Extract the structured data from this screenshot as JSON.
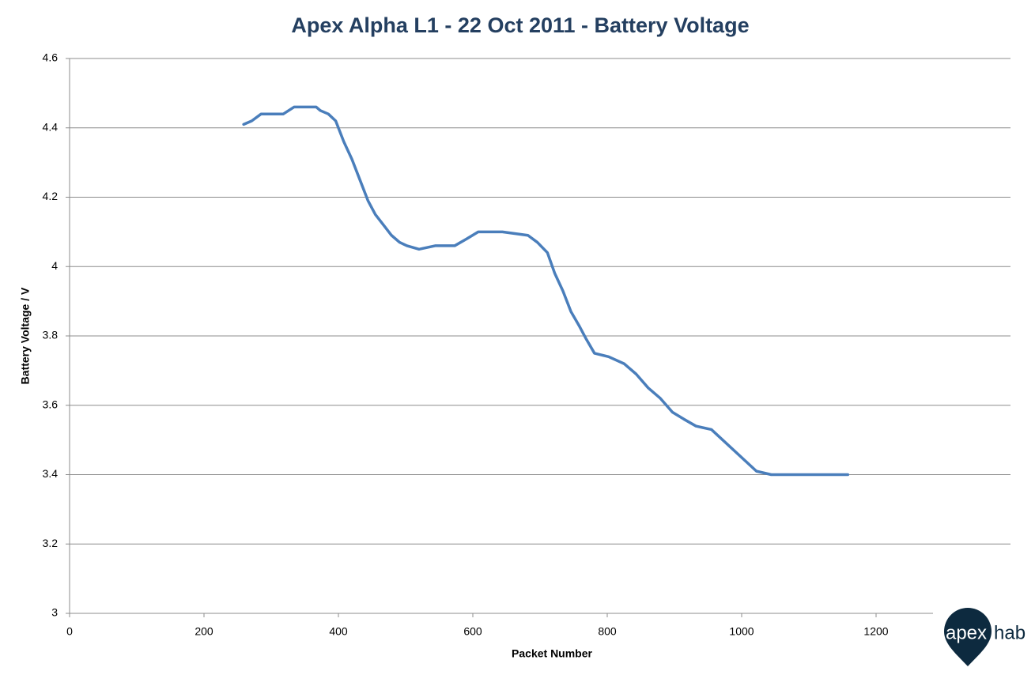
{
  "chart_data": {
    "type": "line",
    "title": "Apex Alpha L1 - 22 Oct 2011 - Battery Voltage",
    "x_label": "Packet Number",
    "y_label": "Battery Voltage / V",
    "x": [
      259,
      271,
      285,
      318,
      334,
      367,
      373,
      385,
      396,
      408,
      420,
      432,
      444,
      455,
      467,
      479,
      491,
      502,
      520,
      544,
      573,
      591,
      608,
      644,
      682,
      696,
      711,
      722,
      734,
      746,
      758,
      769,
      781,
      802,
      825,
      843,
      861,
      879,
      897,
      914,
      932,
      955,
      1022,
      1044,
      1158
    ],
    "series": [
      {
        "name": "Battery Voltage",
        "color": "#4a7ebb",
        "values": [
          4.41,
          4.42,
          4.44,
          4.44,
          4.46,
          4.46,
          4.45,
          4.44,
          4.42,
          4.36,
          4.31,
          4.25,
          4.19,
          4.15,
          4.12,
          4.09,
          4.07,
          4.06,
          4.05,
          4.06,
          4.06,
          4.08,
          4.1,
          4.1,
          4.09,
          4.07,
          4.04,
          3.98,
          3.93,
          3.87,
          3.83,
          3.79,
          3.75,
          3.74,
          3.72,
          3.69,
          3.65,
          3.62,
          3.58,
          3.56,
          3.54,
          3.53,
          3.41,
          3.4,
          3.4
        ]
      }
    ],
    "xlim": [
      0,
      1400
    ],
    "xticks": [
      0,
      200,
      400,
      600,
      800,
      1000,
      1200
    ],
    "ylim": [
      3,
      4.6
    ],
    "yticks": [
      3,
      3.2,
      3.4,
      3.6,
      3.8,
      4,
      4.2,
      4.4,
      4.6
    ],
    "grid": true
  },
  "logo": {
    "left": "apex",
    "right": "hab"
  }
}
